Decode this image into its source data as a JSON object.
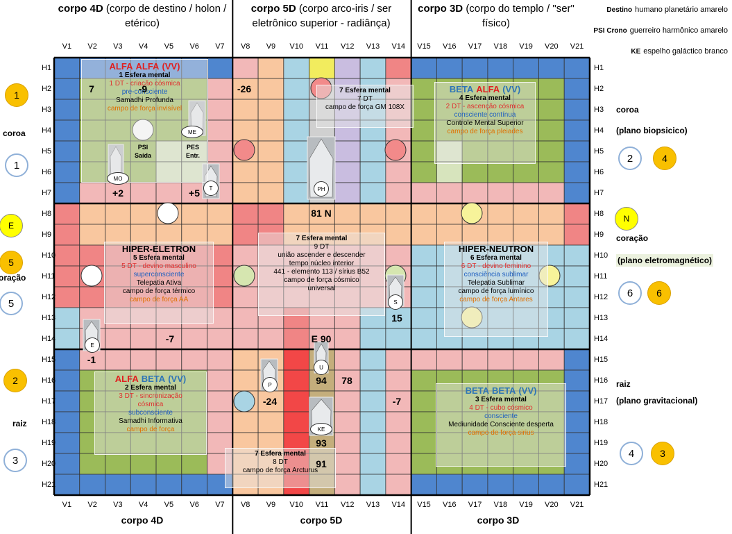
{
  "header": {
    "bodies": [
      {
        "name": "corpo 4D",
        "detail": "(corpo de destino / holon / etérico)"
      },
      {
        "name": "corpo 5D",
        "detail": "(corpo arco-iris / ser eletrônico superior - radiânça)"
      },
      {
        "name": "corpo 3D",
        "detail": "(corpo do templo / \"ser\" físico)"
      }
    ]
  },
  "legend": [
    {
      "key": "Destino",
      "value": "humano planetário amarelo"
    },
    {
      "key": "PSI Crono",
      "value": "guerreiro harmônico amarelo"
    },
    {
      "key": "KE",
      "value": "espelho galáctico branco"
    }
  ],
  "grid": {
    "columns": [
      "V1",
      "V2",
      "V3",
      "V4",
      "V5",
      "V6",
      "V7",
      "V8",
      "V9",
      "V10",
      "V11",
      "V12",
      "V13",
      "V14",
      "V15",
      "V16",
      "V17",
      "V18",
      "V19",
      "V20",
      "V21"
    ],
    "rows": [
      "H1",
      "H2",
      "H3",
      "H4",
      "H5",
      "H6",
      "H7",
      "H8",
      "H9",
      "H10",
      "H11",
      "H12",
      "H13",
      "H14",
      "H15",
      "H16",
      "H17",
      "H18",
      "H19",
      "H20",
      "H21"
    ]
  },
  "footer": [
    "corpo 4D",
    "corpo 5D",
    "corpo 3D"
  ],
  "left_side": [
    "1",
    "coroa",
    "1",
    "E",
    "5",
    "oração",
    "5",
    "2",
    "raiz",
    "3"
  ],
  "right_side": [
    "coroa",
    "(plano biopsicico)",
    "2",
    "4",
    "N",
    "coração",
    "(plano eletromagnético)",
    "6",
    "6",
    "raiz",
    "(plano gravitacional)",
    "4",
    "3"
  ],
  "boxes": [
    {
      "title": [
        {
          "text": "ALFA",
          "color": "#e02020"
        },
        {
          "text": "ALFA",
          "color": "#e02020"
        },
        {
          "text": "(VV)",
          "color": "#e02020"
        }
      ],
      "lines": [
        {
          "text": "1 Esfera mental",
          "color": "#000000"
        },
        {
          "text": "1 DT - criação cósmica",
          "color": "#e03030"
        },
        {
          "text": "pre-consciente",
          "color": "#2060c0"
        },
        {
          "text": "Samadhi  Profunda",
          "color": "#000000"
        },
        {
          "text": "campo de força invisível",
          "color": "#e07000"
        }
      ]
    },
    {
      "title": [],
      "lines": [
        {
          "text": "7 Esfera mental",
          "color": "#000000"
        },
        {
          "text": "7 DT",
          "color": "#000000"
        },
        {
          "text": "campo de força GM 108X",
          "color": "#000000"
        }
      ]
    },
    {
      "title": [
        {
          "text": "BETA",
          "color": "#2e75b6"
        },
        {
          "text": "ALFA",
          "color": "#e02020"
        },
        {
          "text": "(VV)",
          "color": "#2e75b6"
        }
      ],
      "lines": [
        {
          "text": "4 Esfera mental",
          "color": "#000000"
        },
        {
          "text": "2 DT - ascenção cósmica",
          "color": "#e03030"
        },
        {
          "text": "consciente contínua",
          "color": "#2060c0"
        },
        {
          "text": "Controle  Mental Superior",
          "color": "#000000"
        },
        {
          "text": "campo de força pleiades",
          "color": "#e07000"
        }
      ]
    },
    {
      "title": [
        {
          "text": "HIPER-ELETRON",
          "color": "#000000"
        }
      ],
      "lines": [
        {
          "text": "5 Esfera mental",
          "color": "#000000"
        },
        {
          "text": "5 DT - devino masculino",
          "color": "#e03030"
        },
        {
          "text": "superconsciente",
          "color": "#2060c0"
        },
        {
          "text": "Telepatia Ativa",
          "color": "#000000"
        },
        {
          "text": "campo de força térmico",
          "color": "#000000"
        },
        {
          "text": "campo de força AA",
          "color": "#e07000"
        }
      ]
    },
    {
      "title": [],
      "lines": [
        {
          "text": "7 Esfera mental",
          "color": "#000000"
        },
        {
          "text": "9 DT",
          "color": "#000000"
        },
        {
          "text": "união ascender  e descender",
          "color": "#000000"
        },
        {
          "text": "tempo núcleo  interior",
          "color": "#000000"
        },
        {
          "text": "441 - elemento 113 / sírius B52",
          "color": "#000000"
        },
        {
          "text": "campo de força cósmico",
          "color": "#000000"
        },
        {
          "text": "universal",
          "color": "#000000"
        }
      ]
    },
    {
      "title": [
        {
          "text": "HIPER-NEUTRON",
          "color": "#000000"
        }
      ],
      "lines": [
        {
          "text": "6 Esfera mental",
          "color": "#000000"
        },
        {
          "text": "6 DT - devino feminino",
          "color": "#e03030"
        },
        {
          "text": "consciência sublimar",
          "color": "#2060c0"
        },
        {
          "text": "Telepatia Sublimar",
          "color": "#000000"
        },
        {
          "text": "campo de força lumínico",
          "color": "#000000"
        },
        {
          "text": "campo de força Antares",
          "color": "#e07000"
        }
      ]
    },
    {
      "title": [
        {
          "text": "ALFA",
          "color": "#e02020"
        },
        {
          "text": "BETA",
          "color": "#2e75b6"
        },
        {
          "text": "(VV)",
          "color": "#2e75b6"
        }
      ],
      "lines": [
        {
          "text": "2 Esfera mental",
          "color": "#000000"
        },
        {
          "text": "3 DT - sincronização",
          "color": "#e03030"
        },
        {
          "text": "cósmica",
          "color": "#e03030"
        },
        {
          "text": "subconsciente",
          "color": "#2060c0"
        },
        {
          "text": "Samadhi Informativa",
          "color": "#000000"
        },
        {
          "text": "campo de força",
          "color": "#e07000"
        }
      ]
    },
    {
      "title": [
        {
          "text": "BETA",
          "color": "#2e75b6"
        },
        {
          "text": "BETA",
          "color": "#2e75b6"
        },
        {
          "text": "(VV)",
          "color": "#2e75b6"
        }
      ],
      "lines": [
        {
          "text": "3 Esfera mental",
          "color": "#000000"
        },
        {
          "text": "4 DT - cubo cósmico",
          "color": "#e03030"
        },
        {
          "text": "consciente",
          "color": "#2060c0"
        },
        {
          "text": "Mediunidade  Consciente  desperta",
          "color": "#000000"
        },
        {
          "text": "campo de força sirius",
          "color": "#e07000"
        }
      ]
    },
    {
      "title": [],
      "lines": [
        {
          "text": "7 Esfera mental",
          "color": "#000000"
        },
        {
          "text": "8 DT",
          "color": "#000000"
        },
        {
          "text": "campo de força Arcturus",
          "color": "#000000"
        }
      ]
    }
  ],
  "markers": [
    "MO",
    "ME",
    "PSI",
    "Saída",
    "PES",
    "Entr.",
    "T",
    "PH",
    "S",
    "E",
    "P",
    "U",
    "KE"
  ],
  "numbers": [
    "7",
    "-9",
    "-26",
    "+2",
    "+5",
    "81 N",
    "15",
    "-7",
    "-1",
    "E 90",
    "94",
    "78",
    "-24",
    "-7",
    "93",
    "91"
  ]
}
